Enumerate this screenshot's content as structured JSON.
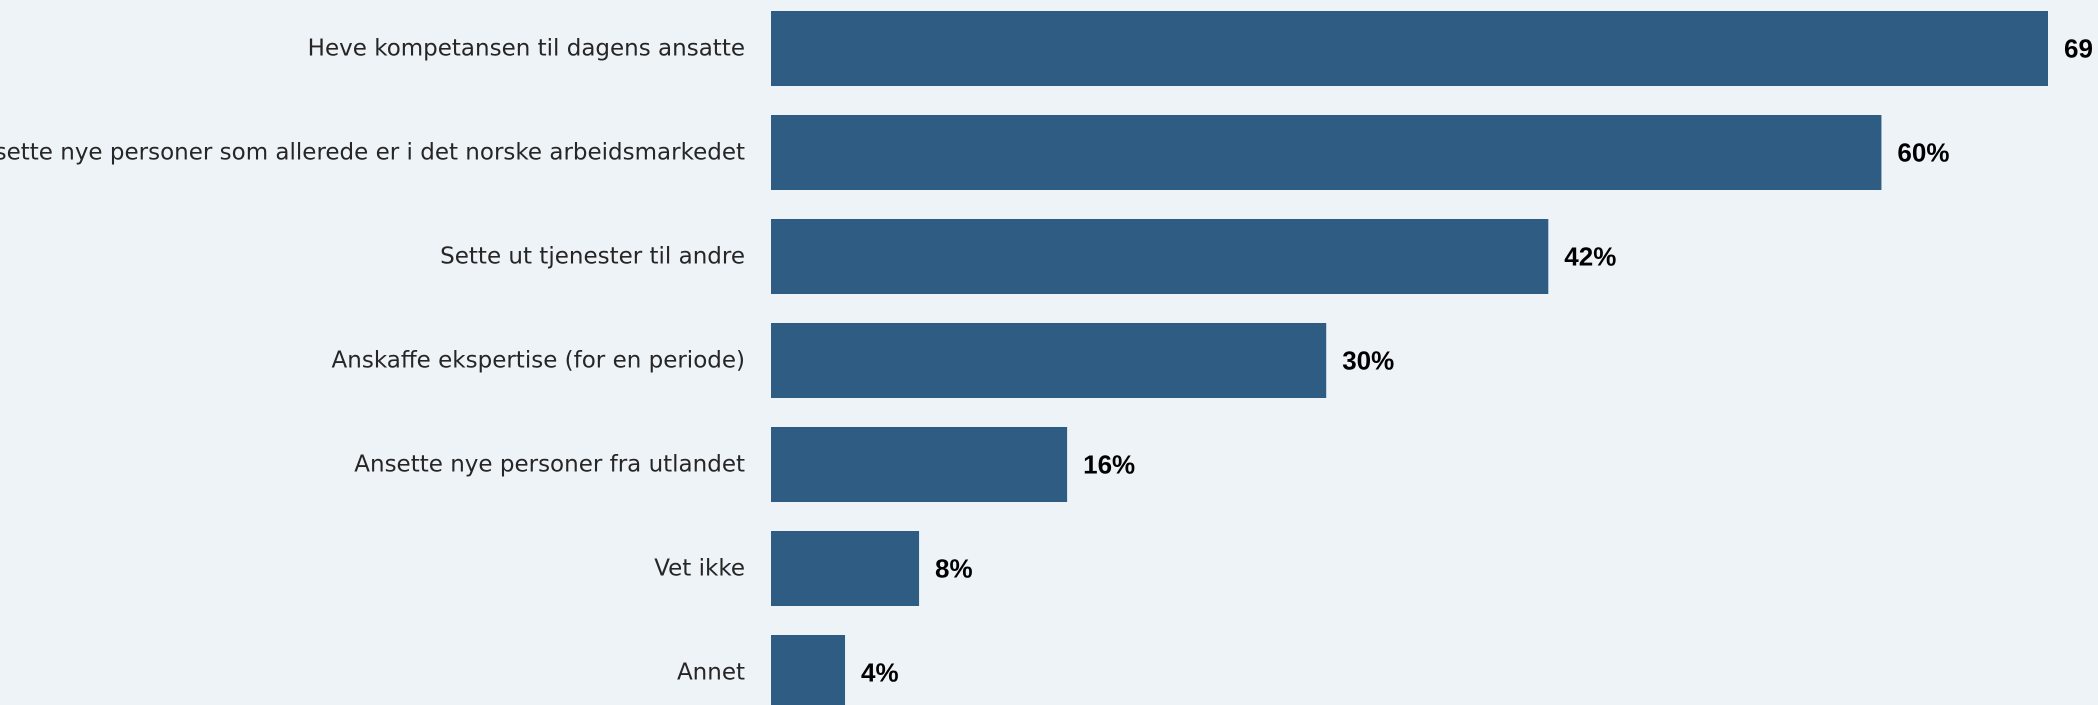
{
  "colors": {
    "background": "#eef3f8",
    "bar": "#2e5c82",
    "category_text": "#262626",
    "value_text": "#000000"
  },
  "chart_data": {
    "type": "bar",
    "orientation": "horizontal",
    "title": "",
    "xlabel": "",
    "ylabel": "",
    "grid": false,
    "legend": "none",
    "xlim": [
      0,
      69
    ],
    "categories": [
      "Heve kompetansen til dagens ansatte",
      "Ansette nye personer som allerede er i det norske arbeidsmarkedet",
      "Sette ut tjenester til andre",
      "Anskaffe ekspertise (for en periode)",
      "Ansette nye personer fra utlandet",
      "Vet ikke",
      "Annet"
    ],
    "values": [
      69,
      60,
      42,
      30,
      16,
      8,
      4
    ],
    "value_labels": [
      "69",
      "60%",
      "42%",
      "30%",
      "16%",
      "8%",
      "4%"
    ]
  }
}
